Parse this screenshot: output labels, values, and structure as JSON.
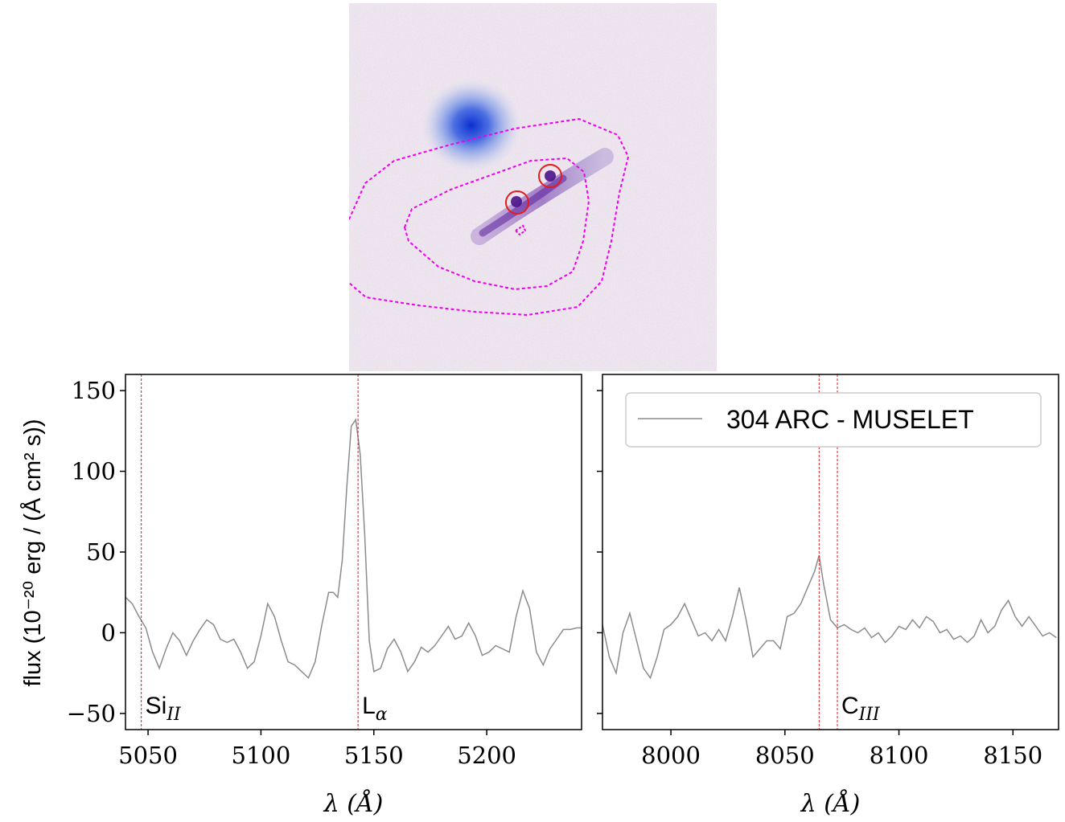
{
  "figure": {
    "ylabel": "flux (10⁻²⁰ erg / (Å cm² s))",
    "legend_label": "304 ARC - MUSELET",
    "legend_placement": "top-right of right panel",
    "colors": {
      "spectrum": "#8c8c8c",
      "line_marker": "#e41a1c",
      "contour": "#ee00ee",
      "aperture": "#e41a1c",
      "galaxy_core": "#1a3fd6",
      "arc": "#6a2fa8",
      "image_bg": "#ece4ee"
    }
  },
  "chart_data": [
    {
      "type": "line",
      "panel": "left",
      "xlabel": "λ (Å)",
      "ylabel": "flux (10⁻²⁰ erg / (Å cm² s))",
      "xlim": [
        5040,
        5242
      ],
      "ylim": [
        -60,
        160
      ],
      "xticks": [
        5050,
        5100,
        5150,
        5200
      ],
      "yticks": [
        -50,
        0,
        50,
        100,
        150
      ],
      "series": [
        {
          "x": [
            5040,
            5043,
            5046,
            5049,
            5052,
            5055,
            5058,
            5061,
            5064,
            5067,
            5070,
            5073,
            5076,
            5079,
            5082,
            5085,
            5088,
            5091,
            5094,
            5097,
            5100,
            5103,
            5106,
            5109,
            5112,
            5115,
            5118,
            5121,
            5124,
            5127,
            5130,
            5132,
            5134,
            5136,
            5138,
            5140,
            5142,
            5144,
            5146,
            5148,
            5150,
            5153,
            5156,
            5159,
            5162,
            5165,
            5168,
            5171,
            5174,
            5177,
            5180,
            5183,
            5186,
            5189,
            5192,
            5195,
            5198,
            5201,
            5204,
            5207,
            5210,
            5213,
            5216,
            5219,
            5222,
            5225,
            5228,
            5231,
            5234,
            5237,
            5240,
            5242
          ],
          "y": [
            22,
            18,
            10,
            3,
            -12,
            -22,
            -10,
            0,
            -5,
            -14,
            -5,
            2,
            8,
            5,
            -4,
            -6,
            -4,
            -12,
            -22,
            -18,
            -2,
            18,
            10,
            -5,
            -18,
            -20,
            -24,
            -28,
            -18,
            5,
            25,
            25,
            22,
            45,
            90,
            128,
            132,
            110,
            60,
            -5,
            -24,
            -22,
            -10,
            -4,
            -12,
            -24,
            -18,
            -9,
            -12,
            -8,
            -2,
            4,
            -4,
            -2,
            6,
            -2,
            -14,
            -12,
            -8,
            -10,
            -12,
            10,
            26,
            15,
            -12,
            -20,
            -10,
            -4,
            2,
            2,
            3,
            3
          ]
        }
      ],
      "lines": [
        {
          "x": 5047,
          "label_main": "Si",
          "label_sub": "II"
        },
        {
          "x": 5143,
          "label_main": "L",
          "label_sub": "α"
        }
      ]
    },
    {
      "type": "line",
      "panel": "right",
      "xlabel": "λ (Å)",
      "xlim": [
        7970,
        8170
      ],
      "ylim": [
        -60,
        160
      ],
      "xticks": [
        8000,
        8050,
        8100,
        8150
      ],
      "yticks": [
        -50,
        0,
        50,
        100,
        150
      ],
      "series": [
        {
          "name": "304 ARC - MUSELET",
          "x": [
            7970,
            7973,
            7976,
            7979,
            7982,
            7985,
            7988,
            7991,
            7994,
            7997,
            8000,
            8003,
            8006,
            8009,
            8012,
            8015,
            8018,
            8021,
            8024,
            8027,
            8030,
            8033,
            8036,
            8039,
            8042,
            8045,
            8048,
            8051,
            8054,
            8057,
            8060,
            8063,
            8065,
            8067,
            8070,
            8073,
            8076,
            8079,
            8082,
            8085,
            8088,
            8091,
            8094,
            8097,
            8100,
            8103,
            8106,
            8109,
            8112,
            8115,
            8118,
            8121,
            8124,
            8127,
            8130,
            8133,
            8136,
            8139,
            8142,
            8145,
            8148,
            8151,
            8154,
            8157,
            8160,
            8163,
            8166,
            8169
          ],
          "y": [
            5,
            -15,
            -25,
            0,
            12,
            -5,
            -22,
            -28,
            -15,
            2,
            5,
            10,
            18,
            8,
            -2,
            0,
            -5,
            2,
            -5,
            10,
            28,
            8,
            -15,
            -10,
            -5,
            -5,
            -10,
            10,
            12,
            18,
            28,
            38,
            48,
            30,
            8,
            3,
            5,
            2,
            0,
            3,
            -3,
            0,
            -6,
            -2,
            4,
            2,
            8,
            3,
            10,
            7,
            0,
            2,
            -4,
            -2,
            -6,
            -2,
            8,
            0,
            4,
            14,
            20,
            10,
            4,
            10,
            4,
            -2,
            0,
            -3
          ]
        }
      ],
      "lines": [
        {
          "x": 8065,
          "label_main": "",
          "label_sub": ""
        },
        {
          "x": 8073,
          "label_main": "C",
          "label_sub": "III"
        }
      ]
    }
  ]
}
